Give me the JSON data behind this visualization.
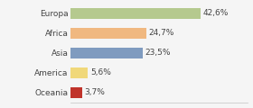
{
  "categories": [
    "Europa",
    "Africa",
    "Asia",
    "America",
    "Oceania"
  ],
  "values": [
    42.6,
    24.7,
    23.5,
    5.6,
    3.7
  ],
  "labels": [
    "42,6%",
    "24,7%",
    "23,5%",
    "5,6%",
    "3,7%"
  ],
  "colors": [
    "#b5c98e",
    "#f0b880",
    "#7f9bbf",
    "#f0d87a",
    "#c0332a"
  ],
  "background_color": "#f5f5f5",
  "label_fontsize": 6.5,
  "tick_fontsize": 6.5,
  "xlim": [
    0,
    58
  ],
  "bar_height": 0.55
}
